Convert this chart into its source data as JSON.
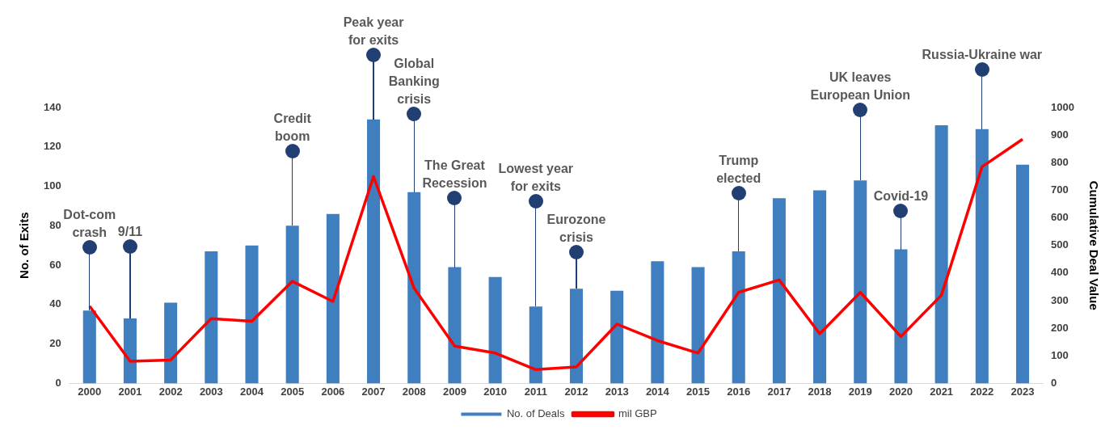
{
  "chart_data": {
    "type": "bar",
    "categories": [
      "2000",
      "2001",
      "2002",
      "2003",
      "2004",
      "2005",
      "2006",
      "2007",
      "2008",
      "2009",
      "2010",
      "2011",
      "2012",
      "2013",
      "2014",
      "2015",
      "2016",
      "2017",
      "2018",
      "2019",
      "2020",
      "2021",
      "2022",
      "2023"
    ],
    "series": [
      {
        "name": "No. of Deals",
        "type": "bar",
        "color": "#3f7fbf",
        "values": [
          37,
          33,
          41,
          67,
          70,
          80,
          86,
          134,
          97,
          59,
          54,
          39,
          48,
          47,
          62,
          59,
          67,
          94,
          98,
          103,
          68,
          131,
          129,
          111
        ]
      },
      {
        "name": "mil GBP",
        "type": "line",
        "axis": "y2",
        "color": "#ff0000",
        "values": [
          280,
          80,
          85,
          235,
          225,
          370,
          297,
          750,
          345,
          135,
          110,
          50,
          60,
          215,
          155,
          110,
          330,
          375,
          180,
          330,
          170,
          320,
          785,
          885
        ]
      }
    ],
    "ylabel": "No. of Exits",
    "y2label": "Cumulative Deal Value",
    "ylim": [
      0,
      140
    ],
    "yticks": [
      0,
      20,
      40,
      60,
      80,
      100,
      120,
      140
    ],
    "y2lim": [
      0,
      1000
    ],
    "y2ticks": [
      0,
      100,
      200,
      300,
      400,
      500,
      600,
      700,
      800,
      900,
      1000
    ],
    "annotations": [
      "Dot-com\ncrash",
      "9/11",
      "Credit\nboom",
      "Peak year\nfor exits",
      "Global\nBanking\ncrisis",
      "The Great\nRecession",
      "Lowest year\nfor exits",
      "Eurozone\ncrisis",
      "Trump\nelected",
      "UK leaves\nEuropean Union",
      "Covid-19",
      "Russia-Ukraine war"
    ],
    "grid": false,
    "legend": "bottom",
    "marker": "none",
    "line_style": "solid"
  }
}
